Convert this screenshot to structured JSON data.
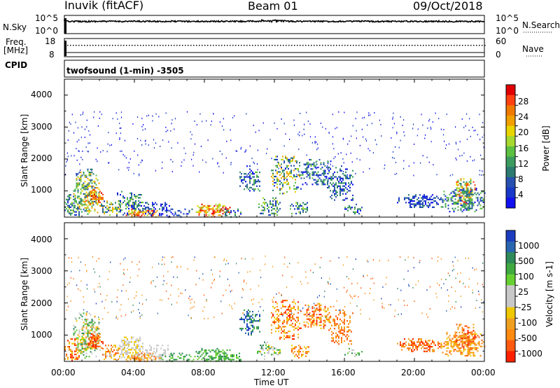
{
  "header": {
    "station": "Inuvik (fitACF)",
    "beam": "Beam 01",
    "date": "09/Oct/2018"
  },
  "noise_panel": {
    "left_label": "N.Sky",
    "left_ticks": [
      "10^5",
      "10^0"
    ],
    "right_label": "N.Search",
    "right_ticks": [
      "10^5",
      "10^0"
    ]
  },
  "freq_panel": {
    "left_label_1": "Freq.",
    "left_label_2": "[MHz]",
    "left_ticks": [
      "18",
      "8"
    ],
    "right_label": "Nave",
    "right_ticks": [
      "60",
      "0"
    ]
  },
  "cpid": {
    "label": "CPID",
    "value": "twofsound (1-min) -3505"
  },
  "chart_data": [
    {
      "type": "heatmap",
      "name": "power",
      "ylabel": "Slant Range [km]",
      "yticks": [
        "4000",
        "3000",
        "2000",
        "1000"
      ],
      "ylim": [
        180,
        4500
      ],
      "xlim_hours": [
        0,
        24
      ],
      "colorbar_label": "Power [dB]",
      "colorbar_ticks": [
        "28",
        "24",
        "20",
        "16",
        "12",
        "8",
        "4"
      ],
      "colorbar_colors": [
        "#e00000",
        "#ff4010",
        "#f07a00",
        "#f0a000",
        "#e8d400",
        "#a6d830",
        "#5cc040",
        "#3c9c60",
        "#2c7a70",
        "#2850b0",
        "#1838c8",
        "#1010f0"
      ]
    },
    {
      "type": "heatmap",
      "name": "velocity",
      "ylabel": "Slant Range [km]",
      "yticks": [
        "4000",
        "3000",
        "2000",
        "1000"
      ],
      "ylim": [
        180,
        4500
      ],
      "xlim_hours": [
        0,
        24
      ],
      "colorbar_label": "Velocity [m s-1]",
      "colorbar_ticks": [
        "1000",
        "500",
        "100",
        "25",
        "-25",
        "-100",
        "-500",
        "-1000"
      ],
      "colorbar_colors": [
        "#1c3cc0",
        "#2a66b0",
        "#2e8a58",
        "#40aa40",
        "#66d030",
        "#c8c8c8",
        "#c8c8c8",
        "#f0c800",
        "#f0a020",
        "#ff8a10",
        "#ff5a10",
        "#ff2000"
      ]
    }
  ],
  "xaxis": {
    "ticks": [
      "00:00",
      "04:00",
      "08:00",
      "12:00",
      "16:00",
      "20:00",
      "00:00"
    ],
    "label": "Time UT"
  }
}
